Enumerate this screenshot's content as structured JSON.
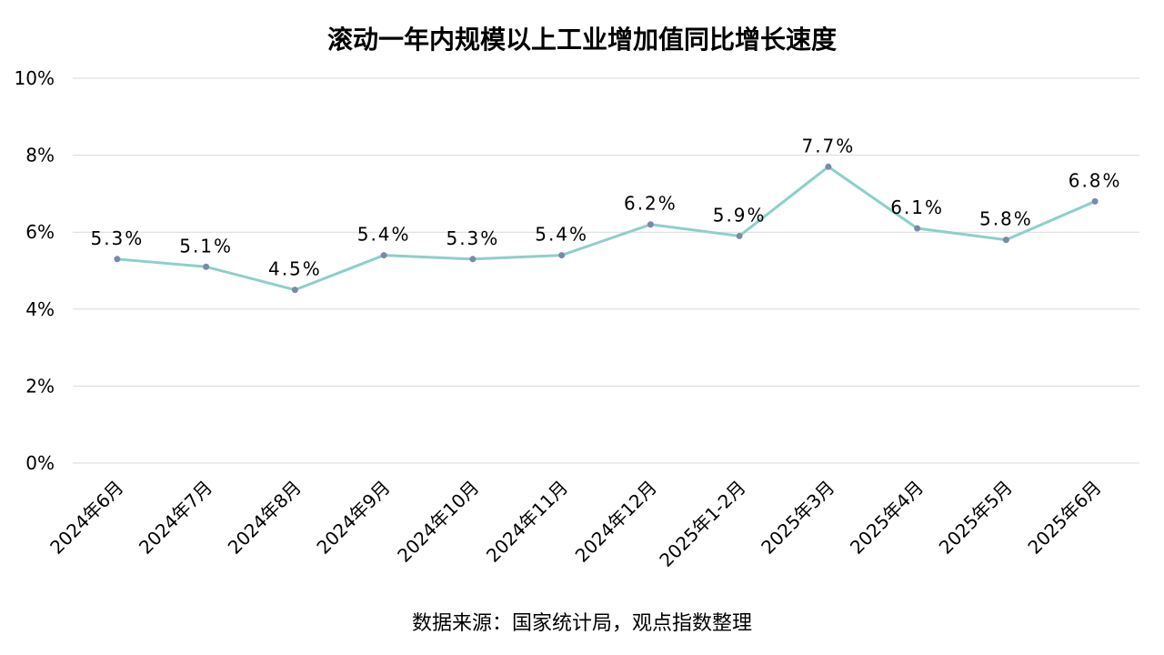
{
  "chart_data": {
    "type": "line",
    "title": "滚动一年内规模以上工业增加值同比增长速度",
    "source": "数据来源：国家统计局，观点指数整理",
    "categories": [
      "2024年6月",
      "2024年7月",
      "2024年8月",
      "2024年9月",
      "2024年10月",
      "2024年11月",
      "2024年12月",
      "2025年1-2月",
      "2025年3月",
      "2025年4月",
      "2025年5月",
      "2025年6月"
    ],
    "values": [
      5.3,
      5.1,
      4.5,
      5.4,
      5.3,
      5.4,
      6.2,
      5.9,
      7.7,
      6.1,
      5.8,
      6.8
    ],
    "data_labels": [
      "5.3%",
      "5.1%",
      "4.5%",
      "5.4%",
      "5.3%",
      "5.4%",
      "6.2%",
      "5.9%",
      "7.7%",
      "6.1%",
      "5.8%",
      "6.8%"
    ],
    "ylim": [
      0,
      10
    ],
    "yticks": [
      0,
      2,
      4,
      6,
      8,
      10
    ],
    "ytick_labels": [
      "0%",
      "2%",
      "4%",
      "6%",
      "8%",
      "10%"
    ],
    "grid": true,
    "legend": "none",
    "colors": {
      "line": "#8ecfc9",
      "marker": "#7a8aa6",
      "grid": "#d9d9d9"
    }
  }
}
